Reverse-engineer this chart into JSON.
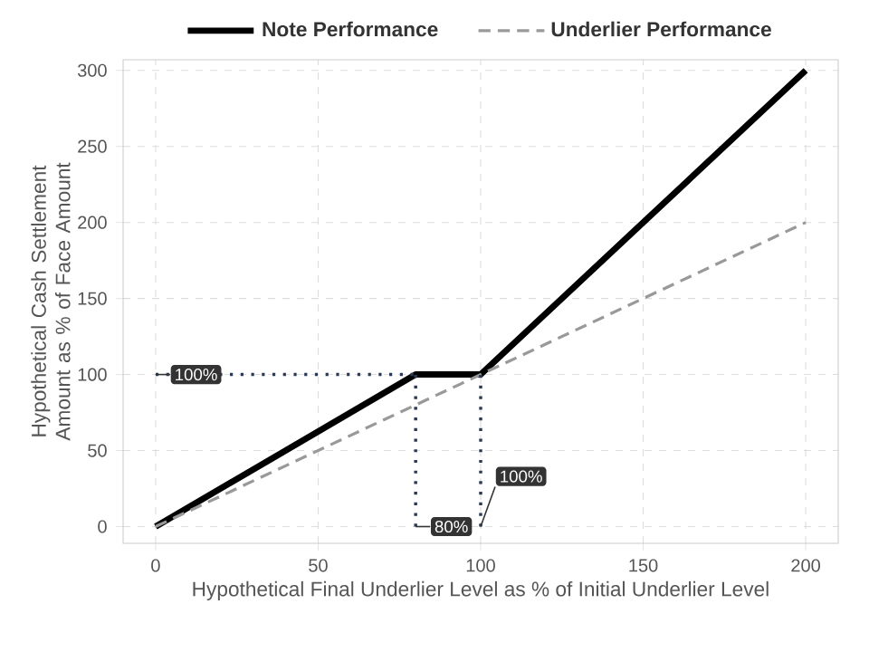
{
  "chart_data": {
    "type": "line",
    "xlabel": "Hypothetical Final Underlier Level as % of Initial Underlier Level",
    "ylabel": "Hypothetical Cash Settlement Amount as % of Face Amount",
    "xlim": [
      -10,
      210
    ],
    "ylim": [
      -11,
      307
    ],
    "xticks": [
      0,
      50,
      100,
      150,
      200
    ],
    "yticks": [
      0,
      50,
      100,
      150,
      200,
      250,
      300
    ],
    "grid": true,
    "legend": "top",
    "series": [
      {
        "name": "Note Performance",
        "color": "#000000",
        "line_style": "solid",
        "x": [
          0,
          80,
          100,
          200
        ],
        "values": [
          0,
          100,
          100,
          300
        ]
      },
      {
        "name": "Underlier Performance",
        "color": "#999999",
        "line_style": "dashed",
        "x": [
          0,
          200
        ],
        "values": [
          0,
          200
        ]
      },
      {
        "color": "#2b3a55",
        "line_style": "dotted",
        "x": [
          0,
          80
        ],
        "values": [
          100,
          100
        ]
      },
      {
        "color": "#2b3a55",
        "line_style": "dotted",
        "x": [
          80,
          80
        ],
        "values": [
          0,
          100
        ]
      },
      {
        "color": "#2b3a55",
        "line_style": "dotted",
        "x": [
          100,
          100
        ],
        "values": [
          0,
          100
        ]
      }
    ],
    "annotations": [
      {
        "text": "100%",
        "x": 0,
        "y": 100
      },
      {
        "text": "80%",
        "x": 80,
        "y": 0
      },
      {
        "text": "100%",
        "x": 100,
        "y": 0
      }
    ]
  }
}
